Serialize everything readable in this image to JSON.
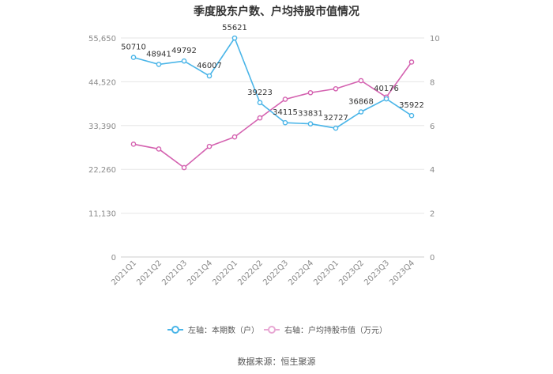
{
  "chart_data": {
    "type": "line",
    "title": "季度股东户数、户均持股市值情况",
    "categories": [
      "2021Q1",
      "2021Q2",
      "2021Q3",
      "2021Q4",
      "2022Q1",
      "2022Q2",
      "2022Q3",
      "2022Q4",
      "2023Q1",
      "2023Q2",
      "2023Q3",
      "2023Q4"
    ],
    "left_axis": {
      "ticks": [
        "0",
        "11,130",
        "22,260",
        "33,390",
        "44,520",
        "55,650"
      ],
      "range": [
        0,
        55650
      ]
    },
    "right_axis": {
      "ticks": [
        "0",
        "2",
        "4",
        "6",
        "8",
        "10"
      ],
      "range": [
        0,
        10
      ]
    },
    "series": [
      {
        "name": "左轴：本期数（户）",
        "axis": "left",
        "color": "#4ab5e8",
        "values": [
          50710,
          48941,
          49792,
          46007,
          55621,
          39223,
          34115,
          33831,
          32727,
          36868,
          40176,
          35922
        ],
        "labels": [
          "50710",
          "48941",
          "49792",
          "46007",
          "55621",
          "39223",
          "34115",
          "33831",
          "32727",
          "36868",
          "40176",
          "35922"
        ]
      },
      {
        "name": "右轴：户均持股市值（万元）",
        "axis": "right",
        "color": "#d462b0",
        "values": [
          5.15,
          4.93,
          4.08,
          5.05,
          5.48,
          6.35,
          7.2,
          7.5,
          7.68,
          8.05,
          7.3,
          8.9
        ]
      }
    ],
    "grid": true,
    "legend_position": "bottom"
  },
  "source": "数据来源：恒生聚源"
}
